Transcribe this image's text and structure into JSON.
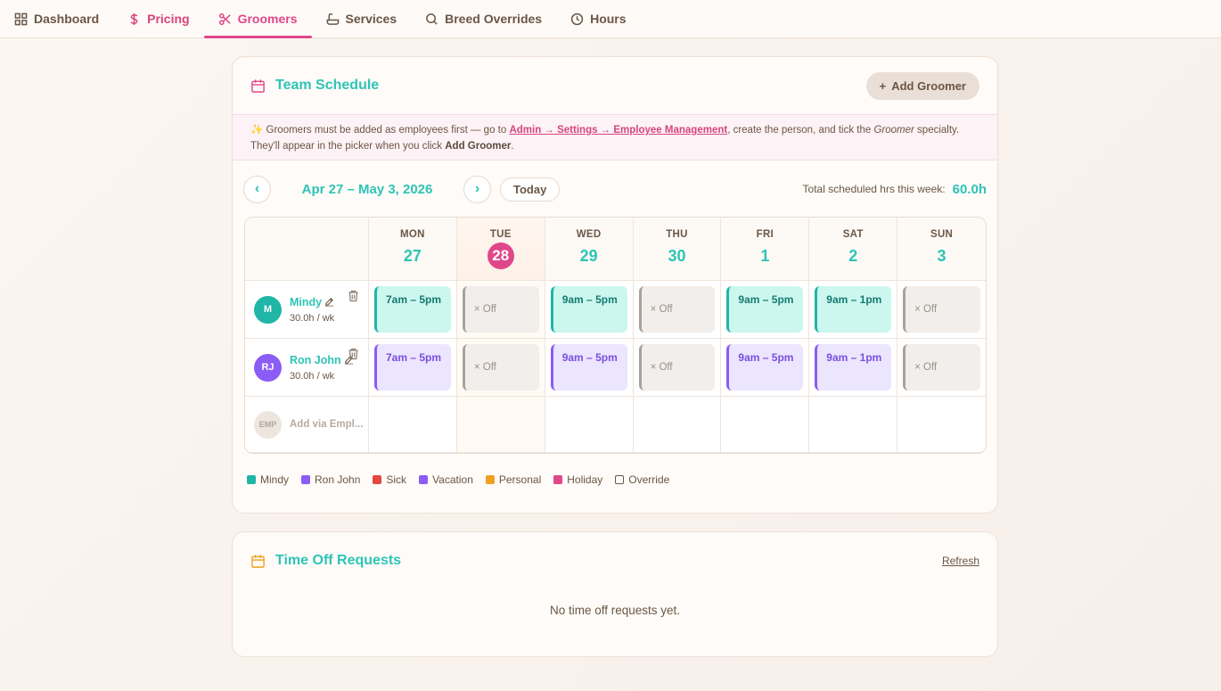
{
  "nav": {
    "tabs": [
      {
        "label": "Dashboard",
        "icon": "grid-icon"
      },
      {
        "label": "Pricing",
        "icon": "dollar-icon"
      },
      {
        "label": "Groomers",
        "icon": "scissors-icon"
      },
      {
        "label": "Services",
        "icon": "bath-icon"
      },
      {
        "label": "Breed Overrides",
        "icon": "search-icon"
      },
      {
        "label": "Hours",
        "icon": "clock-icon"
      }
    ],
    "active": "Groomers"
  },
  "schedule": {
    "title": "Team Schedule",
    "add_button": "Add Groomer",
    "notice": {
      "emoji": "✨",
      "prefix": " Groomers must be added as employees first — go to ",
      "link": "Admin → Settings → Employee Management",
      "middle": ", create the person, and tick the ",
      "specialty": "Groomer",
      "after_specialty": " specialty. They'll appear in the picker when you click ",
      "button_ref": "Add Groomer",
      "end": "."
    },
    "week_range": "Apr 27 – May 3, 2026",
    "prev_label": "‹",
    "next_label": "›",
    "today_label": "Today",
    "total_label": "Total scheduled hrs this week:",
    "total_value": "60.0h",
    "days": [
      {
        "dow": "MON",
        "num": "27",
        "today": false
      },
      {
        "dow": "TUE",
        "num": "28",
        "today": true
      },
      {
        "dow": "WED",
        "num": "29",
        "today": false
      },
      {
        "dow": "THU",
        "num": "30",
        "today": false
      },
      {
        "dow": "FRI",
        "num": "1",
        "today": false
      },
      {
        "dow": "SAT",
        "num": "2",
        "today": false
      },
      {
        "dow": "SUN",
        "num": "3",
        "today": false
      }
    ],
    "groomers": [
      {
        "initials": "M",
        "name": "Mindy",
        "hours": "30.0h / wk",
        "color": "#1fb5a7",
        "style": "teal",
        "shifts": [
          "7am – 5pm",
          "× Off",
          "9am – 5pm",
          "× Off",
          "9am – 5pm",
          "9am – 1pm",
          "× Off"
        ]
      },
      {
        "initials": "RJ",
        "name": "Ron John",
        "hours": "30.0h / wk",
        "color": "#8b5cf6",
        "style": "purple",
        "shifts": [
          "7am – 5pm",
          "× Off",
          "9am – 5pm",
          "× Off",
          "9am – 5pm",
          "9am – 1pm",
          "× Off"
        ]
      }
    ],
    "add_row": {
      "avatar": "EMP",
      "label": "Add via Empl..."
    },
    "legend": [
      {
        "label": "Mindy",
        "color": "#1fb5a7"
      },
      {
        "label": "Ron John",
        "color": "#8b5cf6"
      },
      {
        "label": "Sick",
        "color": "#e5483f"
      },
      {
        "label": "Vacation",
        "color": "#8b5cf6"
      },
      {
        "label": "Personal",
        "color": "#f0a020"
      },
      {
        "label": "Holiday",
        "color": "#e0478a"
      },
      {
        "label": "Override",
        "color": "outline"
      }
    ]
  },
  "time_off": {
    "title": "Time Off Requests",
    "refresh": "Refresh",
    "empty": "No time off requests yet."
  }
}
